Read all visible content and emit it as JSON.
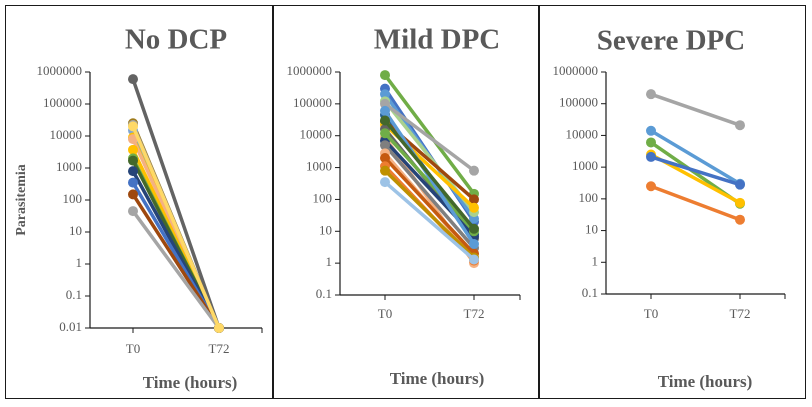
{
  "chart_data": [
    {
      "type": "line",
      "title": "No DCP",
      "xlabel": "Time (hours)",
      "ylabel": "Parasitemia",
      "yscale": "log",
      "ylim": [
        0.01,
        1000000
      ],
      "yticks": [
        "1000000",
        "100000",
        "10000",
        "1000",
        "100",
        "10",
        "1",
        "0.1",
        "0.01"
      ],
      "categories": [
        "T0",
        "T72"
      ],
      "grid": false,
      "series": [
        {
          "color": "#636363",
          "values": [
            600000,
            0.01
          ]
        },
        {
          "color": "#9e7b1b",
          "values": [
            25000,
            0.01
          ]
        },
        {
          "color": "#a5a5a5",
          "values": [
            22000,
            0.01
          ]
        },
        {
          "color": "#7fa7d4",
          "values": [
            15000,
            0.01
          ]
        },
        {
          "color": "#ffc000",
          "values": [
            9000,
            0.01
          ]
        },
        {
          "color": "#f4b183",
          "values": [
            8000,
            0.01
          ]
        },
        {
          "color": "#ffc000",
          "values": [
            3700,
            0.01
          ]
        },
        {
          "color": "#70ad47",
          "values": [
            2000,
            0.01
          ]
        },
        {
          "color": "#43682b",
          "values": [
            1700,
            0.01
          ]
        },
        {
          "color": "#264478",
          "values": [
            800,
            0.01
          ]
        },
        {
          "color": "#4472c4",
          "values": [
            350,
            0.01
          ]
        },
        {
          "color": "#9e480e",
          "values": [
            150,
            0.01
          ]
        },
        {
          "color": "#a5a5a5",
          "values": [
            45,
            0.01
          ]
        },
        {
          "color": "#ffd966",
          "values": [
            20000,
            0.01
          ]
        }
      ]
    },
    {
      "type": "line",
      "title": "Mild DPC",
      "xlabel": "Time (hours)",
      "ylabel": "",
      "yscale": "log",
      "ylim": [
        0.1,
        1000000
      ],
      "yticks": [
        "1000000",
        "100000",
        "10000",
        "1000",
        "100",
        "10",
        "1",
        "0.1"
      ],
      "categories": [
        "T0",
        "T72"
      ],
      "grid": false,
      "series": [
        {
          "color": "#70ad47",
          "values": [
            800000,
            150
          ]
        },
        {
          "color": "#4472c4",
          "values": [
            300000,
            20
          ]
        },
        {
          "color": "#5b9bd5",
          "values": [
            200000,
            25
          ]
        },
        {
          "color": "#a9d18e",
          "values": [
            120000,
            40
          ]
        },
        {
          "color": "#a5a5a5",
          "values": [
            100000,
            800
          ]
        },
        {
          "color": "#255e91",
          "values": [
            45000,
            8
          ]
        },
        {
          "color": "#9e480e",
          "values": [
            28000,
            100
          ]
        },
        {
          "color": "#ffc000",
          "values": [
            22000,
            55
          ]
        },
        {
          "color": "#636363",
          "values": [
            16000,
            6
          ]
        },
        {
          "color": "#f4b183",
          "values": [
            9000,
            1
          ]
        },
        {
          "color": "#264478",
          "values": [
            7000,
            7
          ]
        },
        {
          "color": "#70ad47",
          "values": [
            12000,
            10
          ]
        },
        {
          "color": "#7f7f7f",
          "values": [
            5000,
            3
          ]
        },
        {
          "color": "#f4b183",
          "values": [
            2800,
            1.5
          ]
        },
        {
          "color": "#c55a11",
          "values": [
            2000,
            2
          ]
        },
        {
          "color": "#ed7d31",
          "values": [
            1100,
            1.2
          ]
        },
        {
          "color": "#bf9000",
          "values": [
            800,
            1.5
          ]
        },
        {
          "color": "#9dc3e6",
          "values": [
            350,
            1.3
          ]
        },
        {
          "color": "#5b9bd5",
          "values": [
            60000,
            4
          ]
        },
        {
          "color": "#43682b",
          "values": [
            30000,
            12
          ]
        }
      ]
    },
    {
      "type": "line",
      "title": "Severe DPC",
      "xlabel": "Time (hours)",
      "ylabel": "",
      "yscale": "log",
      "ylim": [
        0.1,
        1000000
      ],
      "yticks": [
        "1000000",
        "100000",
        "10000",
        "1000",
        "100",
        "10",
        "1",
        "0.1"
      ],
      "categories": [
        "T0",
        "T72"
      ],
      "grid": false,
      "series": [
        {
          "color": "#a5a5a5",
          "values": [
            200000,
            21000
          ]
        },
        {
          "color": "#5b9bd5",
          "values": [
            14000,
            300
          ]
        },
        {
          "color": "#70ad47",
          "values": [
            6000,
            70
          ]
        },
        {
          "color": "#ffc000",
          "values": [
            2500,
            75
          ]
        },
        {
          "color": "#4472c4",
          "values": [
            2100,
            280
          ]
        },
        {
          "color": "#ed7d31",
          "values": [
            250,
            22
          ]
        }
      ]
    }
  ]
}
